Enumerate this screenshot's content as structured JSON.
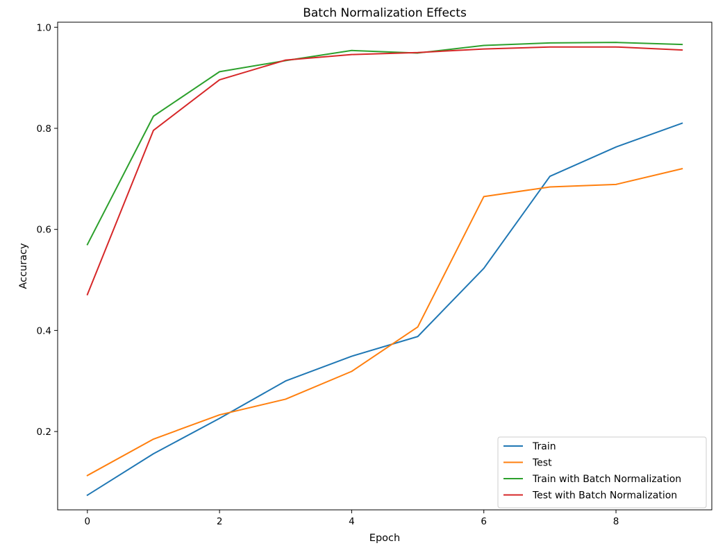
{
  "chart_data": {
    "type": "line",
    "title": "Batch Normalization Effects",
    "xlabel": "Epoch",
    "ylabel": "Accuracy",
    "xlim": [
      -0.45,
      9.45
    ],
    "ylim": [
      0.045,
      1.01
    ],
    "xticks": [
      0,
      2,
      4,
      6,
      8
    ],
    "yticks": [
      0.2,
      0.4,
      0.6,
      0.8,
      1.0
    ],
    "grid": false,
    "legend_position": "lower-right",
    "x": [
      0,
      1,
      2,
      3,
      4,
      5,
      6,
      7,
      8,
      9
    ],
    "series": [
      {
        "name": "Train",
        "color": "#1f77b4",
        "values": [
          0.074,
          0.156,
          0.226,
          0.3,
          0.349,
          0.388,
          0.523,
          0.705,
          0.763,
          0.81
        ]
      },
      {
        "name": "Test",
        "color": "#ff7f0e",
        "values": [
          0.113,
          0.185,
          0.233,
          0.264,
          0.319,
          0.407,
          0.665,
          0.684,
          0.689,
          0.72
        ]
      },
      {
        "name": "Train with Batch Normalization",
        "color": "#2ca02c",
        "values": [
          0.57,
          0.824,
          0.912,
          0.934,
          0.954,
          0.949,
          0.964,
          0.969,
          0.97,
          0.966
        ]
      },
      {
        "name": "Test with Batch Normalization",
        "color": "#d62728",
        "values": [
          0.471,
          0.796,
          0.896,
          0.935,
          0.946,
          0.95,
          0.957,
          0.961,
          0.961,
          0.955
        ]
      }
    ]
  }
}
